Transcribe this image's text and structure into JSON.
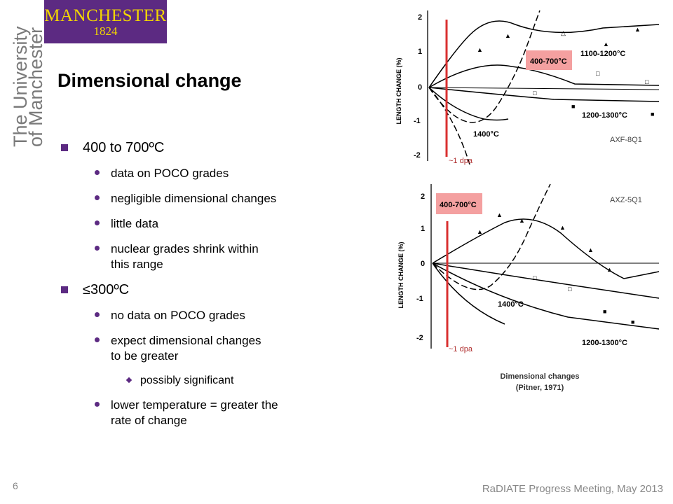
{
  "brand": {
    "logo_name": "MANCHESTER",
    "logo_year": "1824",
    "vertical_line1": "The University",
    "vertical_line2": "of Manchester",
    "purple": "#5c2a82",
    "gold": "#f2d600"
  },
  "slide": {
    "title": "Dimensional change",
    "page_number": "6",
    "footer": "RaDIATE Progress Meeting, May 2013"
  },
  "bullets": {
    "b1": "400 to 700ºC",
    "b1_1": "data on POCO grades",
    "b1_2": "negligible dimensional changes",
    "b1_3": "little data",
    "b1_4a": "nuclear grades shrink within",
    "b1_4b": "this range",
    "b2": "≤300ºC",
    "b2_1": "no data on POCO grades",
    "b2_2a": "expect dimensional changes",
    "b2_2b": "to be greater",
    "b2_2_1": "possibly significant",
    "b2_3a": "lower temperature = greater the",
    "b2_3b": "rate of change"
  },
  "figures": {
    "top_label": "AXF-8Q1",
    "bottom_label": "AXZ-5Q1",
    "dpa_label": "~1 dpa",
    "ylabel": "LENGTH CHANGE (%)",
    "top_ticks": [
      "2",
      "1",
      "0",
      "-1",
      "-2"
    ],
    "bottom_ticks": [
      "2",
      "1",
      "0",
      "-1",
      "-2"
    ],
    "top_highlight": "400-700°C",
    "top_annot_1100": "1100-1200°C",
    "top_annot_1200": "1200-1300°C",
    "top_annot_1400": "1400°C",
    "bottom_highlight": "400-700°C",
    "bottom_annot_1400": "1400°C",
    "bottom_annot_1200": "1200-1300°C",
    "caption_line1": "Dimensional changes",
    "caption_line2": "(Pitner, 1971)",
    "marker_color": "#d93030",
    "highlight_color": "#f4a0a0"
  }
}
